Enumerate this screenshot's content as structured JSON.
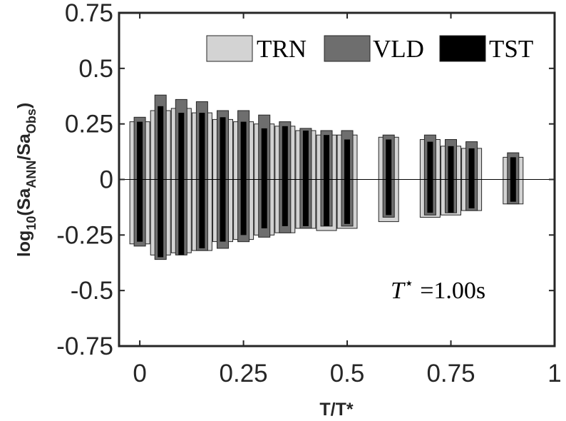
{
  "chart_data": {
    "type": "bar",
    "subtype": "range-bars",
    "xlabel": "T/T*",
    "ylabel": {
      "prefix": "log",
      "prefix_sub": "10",
      "open": "(Sa",
      "num_sub": "ANN",
      "mid": "/Sa",
      "den_sub": "Obs",
      "close": ")"
    },
    "xlim": [
      -0.05,
      1.0
    ],
    "ylim": [
      -0.75,
      0.75
    ],
    "xticks": [
      {
        "value": 0,
        "label": "0"
      },
      {
        "value": 0.25,
        "label": "0.25"
      },
      {
        "value": 0.5,
        "label": "0.5"
      },
      {
        "value": 0.75,
        "label": "0.75"
      },
      {
        "value": 1,
        "label": "1"
      }
    ],
    "yticks": [
      {
        "value": 0.75,
        "label": "0.75"
      },
      {
        "value": 0.5,
        "label": "0.5"
      },
      {
        "value": 0.25,
        "label": "0.25"
      },
      {
        "value": 0,
        "label": "0"
      },
      {
        "value": -0.25,
        "label": "-0.25"
      },
      {
        "value": -0.5,
        "label": "-0.5"
      },
      {
        "value": -0.75,
        "label": "-0.75"
      }
    ],
    "grid": false,
    "legend_position": "top-right",
    "zero_line": 0,
    "annotation": {
      "symbol": "T",
      "superscript": "⋆",
      "text": " =1.00s"
    },
    "x": [
      0,
      0.05,
      0.1,
      0.15,
      0.2,
      0.25,
      0.3,
      0.35,
      0.4,
      0.45,
      0.5,
      0.6,
      0.7,
      0.75,
      0.8,
      0.9
    ],
    "series": [
      {
        "name": "TRN",
        "color": "#d3d3d3",
        "low": [
          -0.29,
          -0.34,
          -0.33,
          -0.32,
          -0.28,
          -0.27,
          -0.25,
          -0.24,
          -0.22,
          -0.23,
          -0.22,
          -0.19,
          -0.17,
          -0.16,
          -0.14,
          -0.11
        ],
        "high": [
          0.26,
          0.31,
          0.32,
          0.3,
          0.27,
          0.26,
          0.25,
          0.24,
          0.22,
          0.2,
          0.2,
          0.19,
          0.18,
          0.15,
          0.14,
          0.1
        ]
      },
      {
        "name": "VLD",
        "color": "#6e6e6e",
        "low": [
          -0.3,
          -0.36,
          -0.34,
          -0.32,
          -0.31,
          -0.28,
          -0.26,
          -0.24,
          -0.22,
          -0.21,
          -0.21,
          -0.17,
          -0.16,
          -0.15,
          -0.14,
          -0.11
        ],
        "high": [
          0.28,
          0.38,
          0.36,
          0.35,
          0.31,
          0.31,
          0.29,
          0.26,
          0.23,
          0.22,
          0.22,
          0.2,
          0.2,
          0.18,
          0.17,
          0.12
        ]
      },
      {
        "name": "TST",
        "color": "#000000",
        "low": [
          -0.28,
          -0.35,
          -0.34,
          -0.31,
          -0.28,
          -0.25,
          -0.22,
          -0.21,
          -0.21,
          -0.21,
          -0.2,
          -0.16,
          -0.15,
          -0.15,
          -0.13,
          -0.1
        ],
        "high": [
          0.26,
          0.33,
          0.3,
          0.3,
          0.28,
          0.26,
          0.23,
          0.24,
          0.22,
          0.2,
          0.18,
          0.18,
          0.17,
          0.15,
          0.14,
          0.1
        ]
      }
    ]
  }
}
